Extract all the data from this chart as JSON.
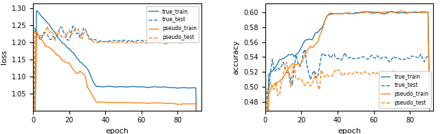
{
  "left_ylabel": "loss",
  "right_ylabel": "accuracy",
  "xlabel": "epoch",
  "xlim": [
    0,
    93
  ],
  "left_ylim": [
    1.0,
    1.315
  ],
  "right_ylim": [
    0.468,
    0.612
  ],
  "left_yticks": [
    1.05,
    1.1,
    1.15,
    1.2,
    1.25,
    1.3
  ],
  "right_yticks": [
    0.48,
    0.5,
    0.52,
    0.54,
    0.56,
    0.58,
    0.6
  ],
  "xticks": [
    0,
    20,
    40,
    60,
    80
  ],
  "legend_entries": [
    "true_train",
    "true_test",
    "pseudo_train",
    "pseudo_test"
  ],
  "blue_color": "#1f77b4",
  "orange_color": "#ff7f0e",
  "linewidth": 1.0,
  "seed": 42,
  "n_epochs": 92
}
